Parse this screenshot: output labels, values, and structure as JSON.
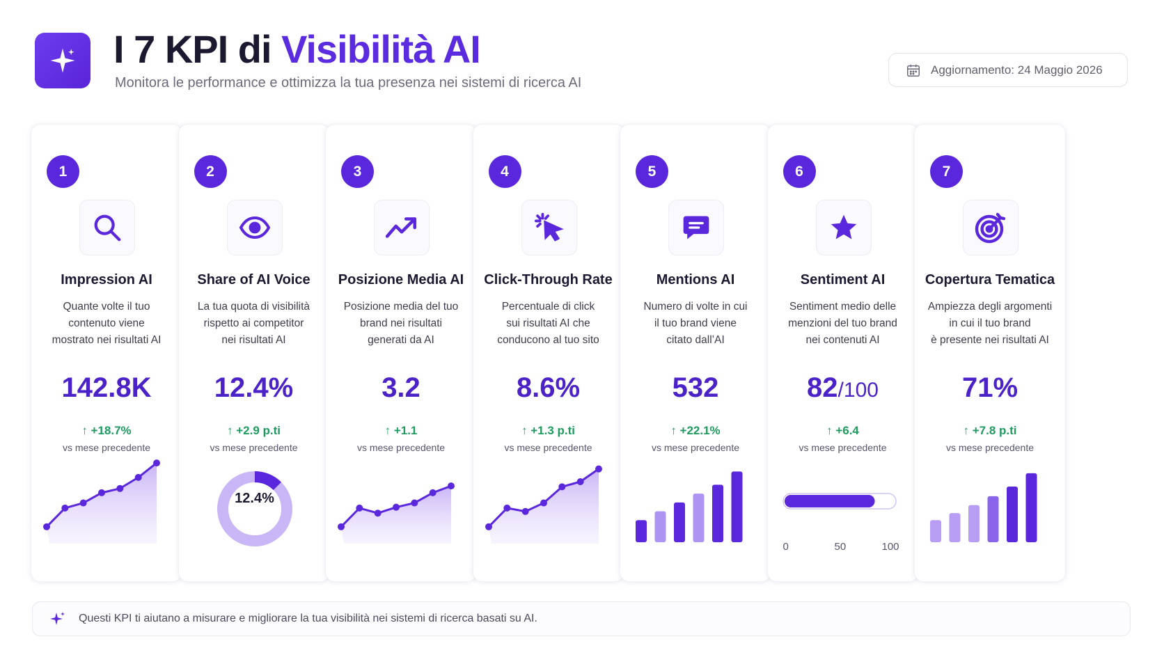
{
  "header": {
    "title_prefix": "I 7 KPI di ",
    "title_accent": "Visibilità AI",
    "subtitle": "Monitora le performance e ottimizza la tua presenza nei sistemi di ricerca AI",
    "update_label": "Aggiornamento: 24 Maggio 2026",
    "logo_icon": "sparkle-icon",
    "calendar_icon": "calendar-icon"
  },
  "colors": {
    "primary": "#5a27dc",
    "value": "#4b22c8",
    "positive": "#1e9b5f",
    "light": "#c8b6f6"
  },
  "kpis": [
    {
      "number": "1",
      "icon": "search-icon",
      "title": "Impression AI",
      "desc": [
        "Quante volte il tuo",
        "contenuto viene",
        "mostrato nei risultati AI"
      ],
      "value": "142.8K",
      "value_suffix": "",
      "delta": "+18.7%",
      "vs": "vs mese precedente",
      "chart_type": "area",
      "chart_values": [
        1,
        3.2,
        3.8,
        5,
        5.5,
        6.8,
        8.5
      ]
    },
    {
      "number": "2",
      "icon": "eye-icon",
      "title": "Share of AI Voice",
      "desc": [
        "La tua quota di visibilità",
        "rispetto ai competitor",
        "nei risultati AI"
      ],
      "value": "12.4%",
      "value_suffix": "",
      "delta": "+2.9 p.ti",
      "vs": "vs mese precedente",
      "chart_type": "donut",
      "donut_label": "12.4%",
      "donut_fraction": 0.124
    },
    {
      "number": "3",
      "icon": "trend-up-icon",
      "title": "Posizione Media AI",
      "desc": [
        "Posizione media del tuo",
        "brand nei risultati",
        "generati da AI"
      ],
      "value": "3.2",
      "value_suffix": "",
      "delta": "+1.1",
      "vs": "vs mese precedente",
      "chart_type": "area",
      "chart_values": [
        1,
        3.2,
        2.6,
        3.3,
        3.8,
        5,
        5.8
      ]
    },
    {
      "number": "4",
      "icon": "cursor-click-icon",
      "title": "Click-Through Rate",
      "desc": [
        "Percentuale di click",
        "sui risultati AI che",
        "conducono al tuo sito"
      ],
      "value": "8.6%",
      "value_suffix": "",
      "delta": "+1.3 p.ti",
      "vs": "vs mese precedente",
      "chart_type": "area",
      "chart_values": [
        1,
        3.2,
        2.8,
        3.8,
        5.7,
        6.3,
        7.8
      ]
    },
    {
      "number": "5",
      "icon": "chat-bubble-icon",
      "title": "Mentions AI",
      "desc": [
        "Numero di volte in cui",
        "il tuo brand viene",
        "citato dall’AI"
      ],
      "value": "532",
      "value_suffix": "",
      "delta": "+22.1%",
      "vs": "vs mese precedente",
      "chart_type": "bar",
      "chart_values": [
        2.5,
        3.5,
        4.5,
        5.5,
        6.5,
        8
      ]
    },
    {
      "number": "6",
      "icon": "star-icon",
      "title": "Sentiment AI",
      "desc": [
        "Sentiment medio delle",
        "menzioni del tuo brand",
        "nei contenuti AI"
      ],
      "value": "82",
      "value_suffix": "/100",
      "delta": "+6.4",
      "vs": "vs mese precedente",
      "chart_type": "gauge",
      "gauge_value": 82,
      "gauge_ticks": [
        "0",
        "50",
        "100"
      ]
    },
    {
      "number": "7",
      "icon": "target-icon",
      "title": "Copertura Tematica",
      "desc": [
        "Ampiezza degli argomenti",
        "in cui il tuo brand",
        "è presente nei risultati AI"
      ],
      "value": "71%",
      "value_suffix": "",
      "delta": "+7.8 p.ti",
      "vs": "vs mese precedente",
      "chart_type": "bar",
      "chart_values": [
        2.5,
        3.3,
        4.2,
        5.2,
        6.3,
        7.8
      ]
    }
  ],
  "footer": {
    "icon": "sparkle-icon",
    "text": "Questi KPI ti aiutano a misurare e migliorare la tua visibilità nei sistemi di ricerca basati su AI."
  }
}
